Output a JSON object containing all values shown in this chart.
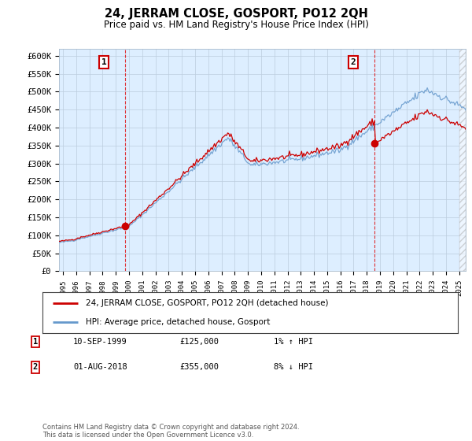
{
  "title": "24, JERRAM CLOSE, GOSPORT, PO12 2QH",
  "subtitle": "Price paid vs. HM Land Registry's House Price Index (HPI)",
  "ylim": [
    0,
    620000
  ],
  "yticks": [
    0,
    50000,
    100000,
    150000,
    200000,
    250000,
    300000,
    350000,
    400000,
    450000,
    500000,
    550000,
    600000
  ],
  "xlim_start": 1994.7,
  "xlim_end": 2025.5,
  "sale1_x": 1999.69,
  "sale1_y": 125000,
  "sale2_x": 2018.58,
  "sale2_y": 355000,
  "vline_color": "#dd0000",
  "hpi_color": "#6699cc",
  "price_color": "#cc0000",
  "plot_bg_color": "#ddeeff",
  "legend_label1": "24, JERRAM CLOSE, GOSPORT, PO12 2QH (detached house)",
  "legend_label2": "HPI: Average price, detached house, Gosport",
  "annotation1_date": "10-SEP-1999",
  "annotation1_price": "£125,000",
  "annotation1_hpi": "1% ↑ HPI",
  "annotation2_date": "01-AUG-2018",
  "annotation2_price": "£355,000",
  "annotation2_hpi": "8% ↓ HPI",
  "footer": "Contains HM Land Registry data © Crown copyright and database right 2024.\nThis data is licensed under the Open Government Licence v3.0.",
  "background_color": "#ffffff",
  "grid_color": "#bbccdd"
}
